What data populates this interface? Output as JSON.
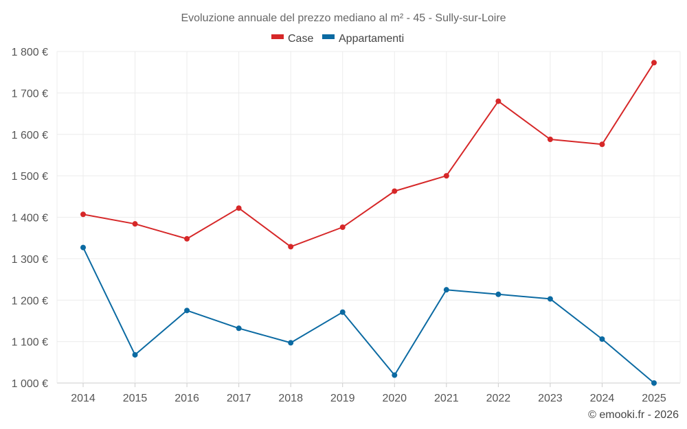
{
  "chart_data": {
    "type": "line",
    "title": "Evoluzione annuale del prezzo mediano al m² - 45 - Sully-sur-Loire",
    "xlabel": "",
    "ylabel": "",
    "categories": [
      "2014",
      "2015",
      "2016",
      "2017",
      "2018",
      "2019",
      "2020",
      "2021",
      "2022",
      "2023",
      "2024",
      "2025"
    ],
    "ylim": [
      1000,
      1800
    ],
    "yticks": [
      1000,
      1100,
      1200,
      1300,
      1400,
      1500,
      1600,
      1700,
      1800
    ],
    "ytick_labels": [
      "1 000 €",
      "1 100 €",
      "1 200 €",
      "1 300 €",
      "1 400 €",
      "1 500 €",
      "1 600 €",
      "1 700 €",
      "1 800 €"
    ],
    "grid": true,
    "legend_position": "top-center",
    "series": [
      {
        "name": "Case",
        "color": "#d62728",
        "values": [
          1407,
          1384,
          1348,
          1422,
          1329,
          1376,
          1463,
          1500,
          1680,
          1588,
          1576,
          1773
        ]
      },
      {
        "name": "Appartamenti",
        "color": "#0b6aa2",
        "values": [
          1327,
          1068,
          1175,
          1132,
          1097,
          1171,
          1019,
          1225,
          1214,
          1203,
          1106,
          1000
        ]
      }
    ]
  },
  "credit": "© emooki.fr - 2026"
}
